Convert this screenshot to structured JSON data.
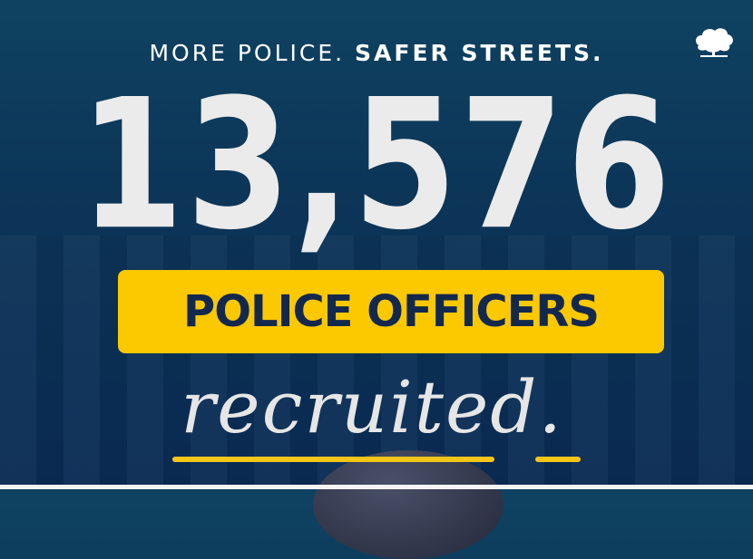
{
  "tagline": {
    "part1": "MORE POLICE.",
    "part2": "SAFER STREETS."
  },
  "logo": {
    "icon": "oak-tree-icon"
  },
  "headline_number": "13,576",
  "banner": {
    "label": "POLICE OFFICERS",
    "background": "#fcc800",
    "text_color": "#13284d"
  },
  "script_word": "recruited.",
  "colors": {
    "background": "#0c3558",
    "accent": "#fcc800"
  }
}
